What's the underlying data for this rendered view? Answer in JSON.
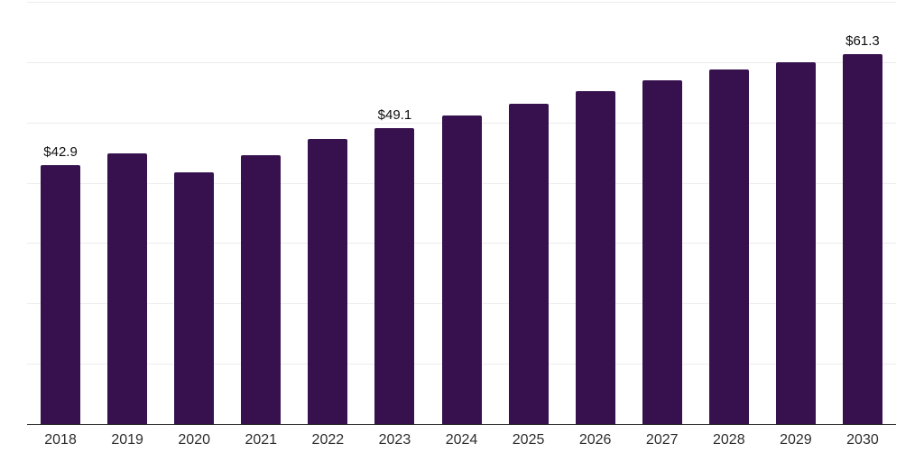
{
  "chart_data": {
    "type": "bar",
    "title": "",
    "xlabel": "",
    "ylabel": "",
    "categories": [
      "2018",
      "2019",
      "2020",
      "2021",
      "2022",
      "2023",
      "2024",
      "2025",
      "2026",
      "2027",
      "2028",
      "2029",
      "2030"
    ],
    "values": [
      42.9,
      44.8,
      41.7,
      44.6,
      47.3,
      49.1,
      51.2,
      53.1,
      55.2,
      57.0,
      58.8,
      60.0,
      61.3
    ],
    "data_labels": [
      "$42.9",
      null,
      null,
      null,
      null,
      "$49.1",
      null,
      null,
      null,
      null,
      null,
      null,
      "$61.3"
    ],
    "ylim": [
      0,
      70
    ],
    "gridline_step": 10,
    "grid": true,
    "legend_position": "none",
    "bar_color": "#36114e",
    "grid_color": "#ececec",
    "axis_color": "#2b2b2b",
    "tick_label_color": "#2e2e2e",
    "data_label_color": "#0f0f0f",
    "background_color": "#ffffff"
  }
}
